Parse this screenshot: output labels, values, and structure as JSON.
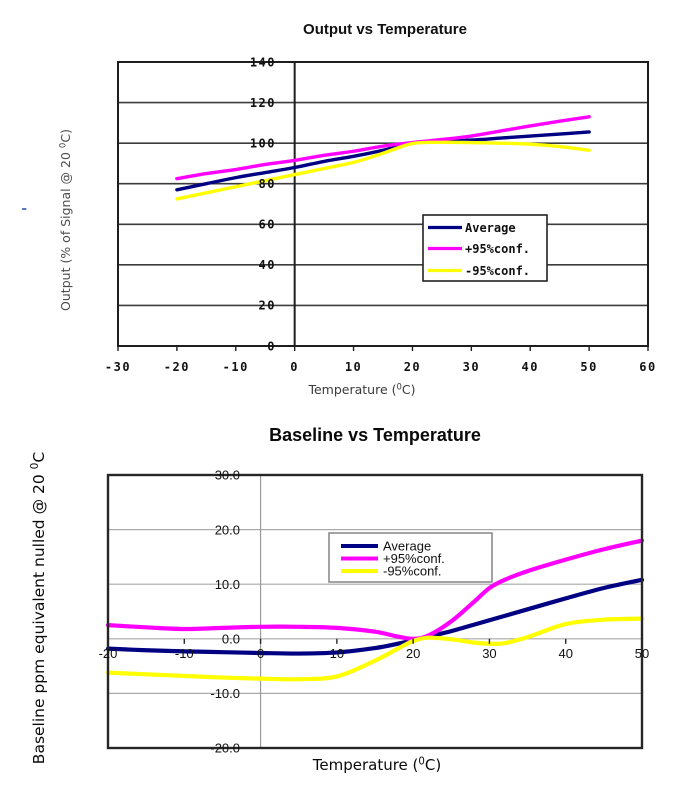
{
  "page": {
    "background": "#ffffff"
  },
  "artifacts": {
    "stray_dash": "-"
  },
  "chart_data": [
    {
      "type": "line",
      "title": "Output vs Temperature",
      "xlabel": "Temperature (⁰C)",
      "ylabel": "Output (% of Signal @ 20 ⁰C)",
      "xlim": [
        -30,
        60
      ],
      "ylim": [
        0,
        140
      ],
      "xticks": [
        -30,
        -20,
        -10,
        0,
        10,
        20,
        30,
        40,
        50,
        60
      ],
      "yticks": [
        0,
        20,
        40,
        60,
        80,
        100,
        120,
        140
      ],
      "ytick_format": "int",
      "grid": "horizontal",
      "vertical_axis_at_x": 0,
      "legend_position": "inside-right",
      "legend_labels": [
        "Average",
        "+95%conf.",
        "-95%conf."
      ],
      "x": [
        -20,
        -15,
        -10,
        -5,
        0,
        5,
        10,
        15,
        20,
        25,
        30,
        35,
        40,
        45,
        50
      ],
      "series": [
        {
          "name": "Average",
          "color": "#000082",
          "values": [
            77,
            80,
            83,
            85.5,
            88,
            91,
            93.5,
            96.5,
            100,
            100.8,
            101.5,
            102.5,
            103.5,
            104.5,
            105.5
          ]
        },
        {
          "name": "+95%conf.",
          "color": "#ff00ff",
          "values": [
            82.5,
            85,
            87,
            89.5,
            91.5,
            94,
            96,
            98.5,
            100.3,
            101.8,
            103.5,
            106,
            108.5,
            110.8,
            113
          ]
        },
        {
          "name": "-95%conf.",
          "color": "#ffff00",
          "values": [
            72.5,
            75.5,
            78.5,
            81.5,
            84.5,
            87.5,
            90.5,
            95,
            99.8,
            100.4,
            100.3,
            100,
            99.5,
            98.3,
            96.5
          ]
        }
      ]
    },
    {
      "type": "line",
      "title": "Baseline vs Temperature",
      "xlabel": "Temperature (⁰C)",
      "ylabel": "Baseline ppm equivalent nulled @ 20 ⁰C",
      "xlim": [
        -20,
        50
      ],
      "ylim": [
        -20,
        30
      ],
      "xticks": [
        -20,
        -10,
        0,
        10,
        20,
        30,
        40,
        50
      ],
      "yticks": [
        -20,
        -10,
        0,
        10,
        20,
        30
      ],
      "ytick_format": "one-decimal",
      "grid": "horizontal",
      "vertical_axis_at_x": 0,
      "legend_position": "inside-top",
      "legend_labels": [
        "Average",
        "+95%conf.",
        "-95%conf."
      ],
      "x": [
        -20,
        -15,
        -10,
        -5,
        0,
        5,
        10,
        15,
        18,
        20,
        22,
        25,
        28,
        30,
        32,
        35,
        40,
        45,
        50
      ],
      "series": [
        {
          "name": "Average",
          "color": "#000082",
          "values": [
            -1.8,
            -2.1,
            -2.3,
            -2.45,
            -2.6,
            -2.7,
            -2.5,
            -1.7,
            -0.9,
            -0.3,
            0.4,
            1.4,
            2.6,
            3.4,
            4.2,
            5.4,
            7.4,
            9.3,
            10.8
          ]
        },
        {
          "name": "+95%conf.",
          "color": "#ff00ff",
          "values": [
            2.5,
            2.1,
            1.8,
            2.0,
            2.2,
            2.2,
            2.0,
            1.3,
            0.4,
            0.0,
            0.6,
            3.2,
            6.8,
            9.3,
            10.8,
            12.4,
            14.5,
            16.4,
            18.0
          ]
        },
        {
          "name": "-95%conf.",
          "color": "#ffff00",
          "values": [
            -6.2,
            -6.5,
            -6.8,
            -7.1,
            -7.3,
            -7.4,
            -6.9,
            -4.0,
            -1.8,
            -0.4,
            0.2,
            -0.1,
            -0.7,
            -0.9,
            -0.8,
            0.3,
            2.7,
            3.5,
            3.7
          ]
        }
      ]
    }
  ]
}
